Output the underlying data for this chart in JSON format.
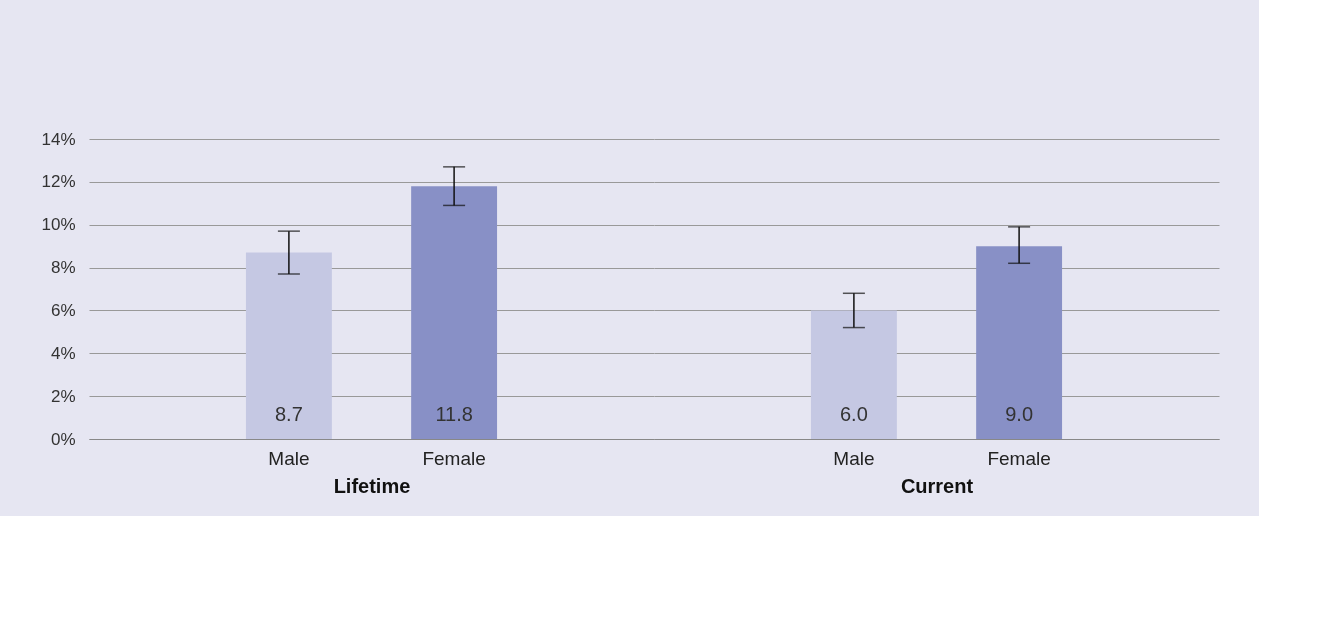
{
  "chart_data": [
    {
      "type": "bar",
      "categories": [
        "Male",
        "Female"
      ],
      "values": [
        8.7,
        11.8
      ],
      "colors": [
        "#c5c8e3",
        "#8890c6"
      ],
      "errors": [
        [
          7.7,
          9.7
        ],
        [
          10.9,
          12.7
        ]
      ],
      "value_labels": [
        "8.7",
        "11.8"
      ],
      "xlabel": "Lifetime",
      "ylim": [
        0,
        14
      ],
      "yticks": [
        {
          "value": 0,
          "label": "0%"
        },
        {
          "value": 2,
          "label": "2%"
        },
        {
          "value": 4,
          "label": "4%"
        },
        {
          "value": 6,
          "label": "6%"
        },
        {
          "value": 8,
          "label": "8%"
        },
        {
          "value": 10,
          "label": "10%"
        },
        {
          "value": 12,
          "label": "12%"
        },
        {
          "value": 14,
          "label": "14%"
        }
      ],
      "grid": "y"
    },
    {
      "type": "bar",
      "categories": [
        "Male",
        "Female"
      ],
      "values": [
        6.0,
        9.0
      ],
      "colors": [
        "#c5c8e3",
        "#8890c6"
      ],
      "errors": [
        [
          5.2,
          6.8
        ],
        [
          8.2,
          9.9
        ]
      ],
      "value_labels": [
        "6.0",
        "9.0"
      ],
      "xlabel": "Current",
      "ylim": [
        0,
        14
      ],
      "yticks": [
        0,
        2,
        4,
        6,
        8,
        10,
        12,
        14
      ],
      "grid": "y",
      "tick_labels": "x"
    }
  ]
}
